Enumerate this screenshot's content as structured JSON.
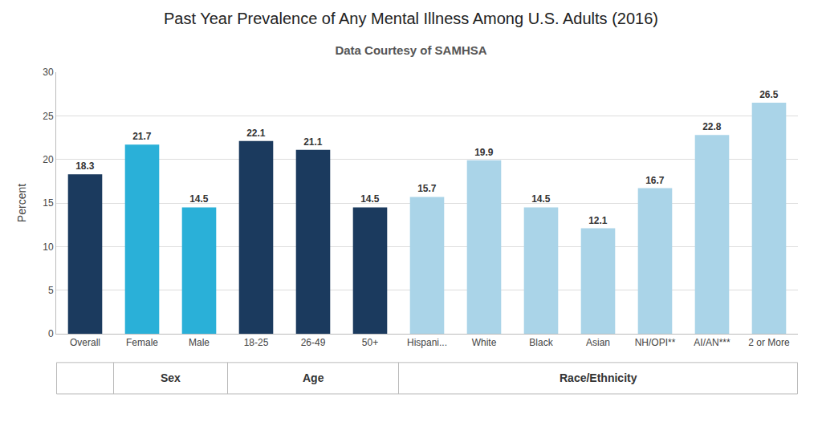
{
  "chart_data": {
    "type": "bar",
    "title": "Past Year Prevalence of Any Mental Illness Among U.S. Adults (2016)",
    "subtitle": "Data Courtesy of SAMHSA",
    "y_label": "Percent",
    "categories": [
      "Overall",
      "Female",
      "Male",
      "18-25",
      "26-49",
      "50+",
      "Hispani...",
      "White",
      "Black",
      "Asian",
      "NH/OPI**",
      "AI/AN***",
      "2 or More"
    ],
    "values": [
      18.3,
      21.7,
      14.5,
      22.1,
      21.1,
      14.5,
      15.7,
      19.9,
      14.5,
      12.1,
      16.7,
      22.8,
      26.5
    ],
    "colors": [
      "#1b3a5e",
      "#2ab0d8",
      "#2ab0d8",
      "#1b3a5e",
      "#1b3a5e",
      "#1b3a5e",
      "#aad4e8",
      "#aad4e8",
      "#aad4e8",
      "#aad4e8",
      "#aad4e8",
      "#aad4e8",
      "#aad4e8"
    ],
    "groups": [
      {
        "label": "Sex",
        "categories": [
          "Female",
          "Male"
        ]
      },
      {
        "label": "Age",
        "categories": [
          "18-25",
          "26-49",
          "50+"
        ]
      },
      {
        "label": "Race/Ethnicity",
        "categories": [
          "Hispani...",
          "White",
          "Black",
          "Asian",
          "NH/OPI**",
          "AI/AN***",
          "2 or More"
        ]
      }
    ],
    "ylim": [
      0,
      30
    ],
    "yticks": [
      0,
      5,
      10,
      15,
      20,
      25,
      30
    ],
    "grid": true,
    "data_labels": true
  }
}
